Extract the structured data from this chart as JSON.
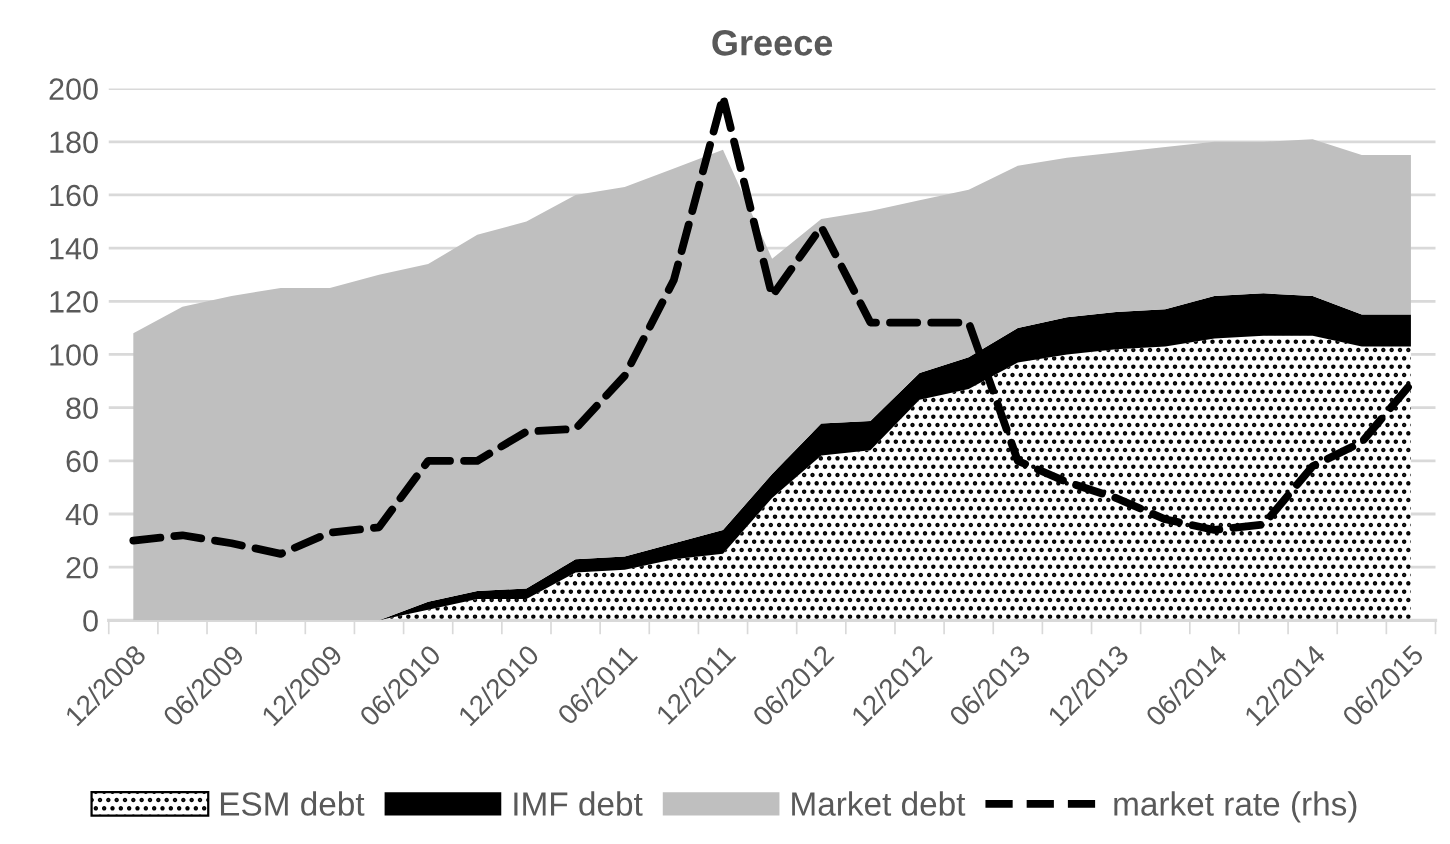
{
  "chart_data": {
    "type": "area",
    "title": "Greece",
    "stacked": true,
    "categories": [
      "12/2008",
      null,
      "06/2009",
      null,
      "12/2009",
      null,
      "06/2010",
      null,
      "12/2010",
      null,
      "06/2011",
      null,
      "12/2011",
      null,
      "06/2012",
      null,
      "12/2012",
      null,
      "06/2013",
      null,
      "12/2013",
      null,
      "06/2014",
      null,
      "12/2014",
      null,
      "06/2015"
    ],
    "series": [
      {
        "name": "ESM debt",
        "color": "#ffffff",
        "values": [
          0,
          0,
          0,
          0,
          0,
          0,
          4,
          8,
          8,
          18,
          19,
          23,
          25,
          46,
          62,
          64,
          83,
          87,
          97,
          100,
          102,
          103,
          106,
          107,
          107,
          103,
          103
        ]
      },
      {
        "name": "IMF debt",
        "color": "#000000",
        "values": [
          0,
          0,
          0,
          0,
          0,
          0,
          3,
          3,
          4,
          5,
          5,
          6,
          9,
          9,
          12,
          11,
          10,
          12,
          13,
          14,
          14,
          14,
          16,
          16,
          15,
          12,
          12
        ]
      },
      {
        "name": "Market debt",
        "color": "#bfbfbf",
        "values": [
          108,
          118,
          122,
          125,
          125,
          130,
          127,
          134,
          138,
          137,
          139,
          141,
          143,
          81,
          77,
          79,
          65,
          63,
          61,
          60,
          60,
          61,
          58,
          57,
          59,
          60,
          60
        ]
      },
      {
        "name": "market rate (rhs)",
        "type": "line",
        "color": "#000000",
        "line_style": "dashed",
        "values": [
          30,
          32,
          29,
          25,
          33,
          35,
          60,
          60,
          71,
          72,
          92,
          128,
          197,
          122,
          148,
          112,
          112,
          112,
          60,
          52,
          46,
          38,
          34,
          36,
          58,
          67,
          89
        ]
      }
    ],
    "ylim": [
      0,
      200
    ],
    "yticks": [
      0,
      20,
      40,
      60,
      80,
      100,
      120,
      140,
      160,
      180,
      200
    ],
    "grid": "y",
    "legend": "bottom"
  }
}
